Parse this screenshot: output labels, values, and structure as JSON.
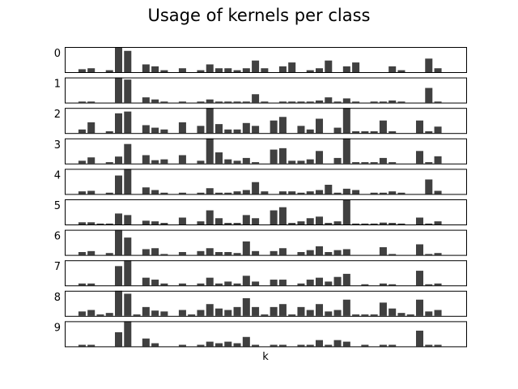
{
  "chart_data": {
    "type": "bar",
    "title": "Usage of kernels per class",
    "xlabel": "k",
    "ylabel": "",
    "bar_color": "#404040",
    "grid": false,
    "legend": "none",
    "n_kernels": 40,
    "panels": [
      {
        "label": "0",
        "values": [
          1.5,
          2,
          0,
          1,
          13,
          11,
          0,
          4,
          3,
          1,
          0,
          2,
          0,
          1,
          4,
          2,
          2,
          1,
          2,
          6,
          2,
          0,
          3,
          5,
          0,
          1,
          2,
          6,
          0,
          3,
          5,
          0,
          0,
          0,
          3,
          1,
          0,
          0,
          7,
          2
        ]
      },
      {
        "label": "1",
        "values": [
          0.5,
          0.5,
          0,
          0,
          12,
          11,
          0,
          2.5,
          1.5,
          0.5,
          0,
          0.5,
          0,
          0.5,
          1.5,
          0.5,
          0.5,
          0.5,
          0.5,
          4,
          0.5,
          0,
          0.5,
          0.5,
          0.5,
          0.5,
          1,
          2.5,
          0.5,
          2,
          0.5,
          0,
          0.5,
          0.5,
          1,
          0.5,
          0,
          0,
          7,
          0.5
        ]
      },
      {
        "label": "2",
        "values": [
          1,
          3,
          0,
          0.5,
          5.5,
          6,
          0,
          2.2,
          1.5,
          1,
          0,
          3,
          0,
          2,
          7,
          2.5,
          1,
          1,
          2.8,
          2,
          0,
          3.5,
          4.5,
          0,
          2,
          1,
          4,
          0,
          1.5,
          7,
          0.5,
          0.5,
          0.5,
          3.5,
          0.5,
          0,
          0,
          3.5,
          0.5,
          1.8
        ]
      },
      {
        "label": "3",
        "values": [
          1,
          2.2,
          0,
          0.5,
          2.5,
          7,
          0,
          3,
          1.2,
          1.5,
          0,
          3,
          0,
          1,
          9,
          4,
          1.5,
          1,
          2,
          0.5,
          0,
          5,
          5.5,
          1,
          1,
          1.5,
          4.5,
          0,
          2,
          9,
          0.5,
          0.5,
          0.5,
          2,
          0.5,
          0,
          0,
          4.5,
          0.5,
          2.6
        ]
      },
      {
        "label": "4",
        "values": [
          1,
          1.2,
          0,
          0.5,
          7,
          9.5,
          0,
          2.5,
          1.5,
          0.5,
          0,
          0.5,
          0,
          0.5,
          2.2,
          0.5,
          0.5,
          1,
          1.5,
          4.5,
          1,
          0,
          1,
          1,
          0.5,
          1,
          1.5,
          3.5,
          0.5,
          2,
          1.5,
          0,
          0.5,
          0.5,
          1,
          0.5,
          0,
          0,
          5.5,
          1.2
        ]
      },
      {
        "label": "5",
        "values": [
          0.7,
          0.7,
          0.3,
          0.3,
          3.5,
          3,
          0,
          1.2,
          1,
          0.5,
          0,
          2.2,
          0,
          1,
          4.5,
          2,
          0.5,
          0.5,
          3,
          2,
          0,
          4.5,
          5.5,
          0.5,
          1,
          2,
          2.5,
          0.5,
          1,
          8,
          0.3,
          0.3,
          0.3,
          0.6,
          0.5,
          0.3,
          0,
          2.2,
          0.3,
          1
        ]
      },
      {
        "label": "6",
        "values": [
          1.5,
          2,
          0,
          1,
          13,
          9,
          0,
          3,
          3.5,
          0.5,
          0,
          1.5,
          0,
          2,
          3.5,
          1.5,
          1.5,
          1,
          7,
          2,
          0,
          2,
          3.5,
          0,
          1.5,
          2.5,
          4.5,
          1.5,
          2.5,
          3,
          0,
          0,
          0,
          4,
          0.5,
          0,
          0,
          5.5,
          0.5,
          1
        ]
      },
      {
        "label": "7",
        "values": [
          0.5,
          0.5,
          0,
          0,
          5,
          6.5,
          0,
          2,
          1.5,
          0.5,
          0,
          0.5,
          0,
          0.5,
          2,
          0.5,
          1,
          0.5,
          2.5,
          1,
          0,
          1.5,
          1.5,
          0,
          0.5,
          1.5,
          2,
          1,
          2.2,
          3,
          0,
          0.3,
          0,
          0.5,
          0.3,
          0,
          0,
          3.8,
          0.3,
          0.5
        ]
      },
      {
        "label": "8",
        "values": [
          1.5,
          2,
          0.5,
          1,
          8.5,
          7.5,
          0.5,
          3,
          1.8,
          1.5,
          0,
          2,
          0.5,
          2,
          4,
          2.5,
          2,
          3,
          6,
          3,
          0.5,
          3,
          4,
          0.5,
          3,
          2,
          4,
          1.5,
          2,
          5.5,
          0.5,
          0.5,
          0.5,
          4.5,
          2.5,
          1,
          0.5,
          5.5,
          1.5,
          2
        ]
      },
      {
        "label": "9",
        "values": [
          0.5,
          0.5,
          0,
          0,
          4.5,
          8,
          0,
          2.5,
          1,
          0,
          0,
          0.5,
          0,
          0.5,
          1.5,
          1,
          1.5,
          1,
          3,
          0.5,
          0,
          0.5,
          0.5,
          0,
          0.5,
          0.5,
          2,
          0.5,
          2,
          1.5,
          0,
          0.5,
          0,
          0.5,
          0.5,
          0,
          0,
          5,
          0.5,
          0.5
        ]
      }
    ]
  }
}
